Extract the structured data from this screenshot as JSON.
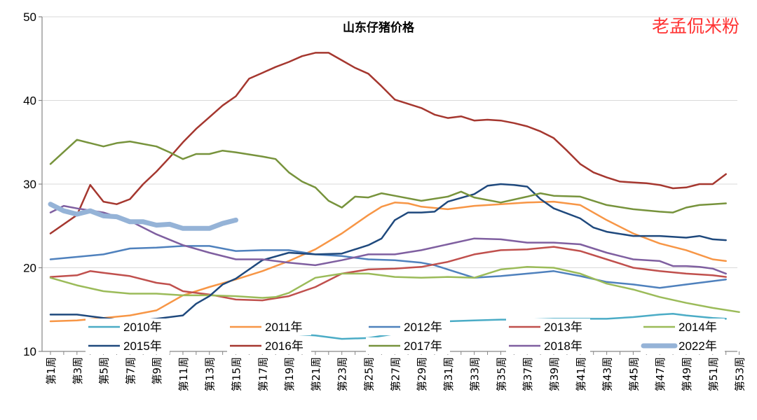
{
  "chart_data": {
    "type": "line",
    "title": "山东仔猪价格",
    "watermark": "老孟侃米粉",
    "xlabel": "",
    "ylabel": "",
    "ylim": [
      10,
      50
    ],
    "y_ticks": [
      "10",
      "20",
      "30",
      "40",
      "50"
    ],
    "x_tick_labels": [
      "第1周",
      "第3周",
      "第5周",
      "第7周",
      "第9周",
      "第11周",
      "第13周",
      "第15周",
      "第17周",
      "第19周",
      "第21周",
      "第23周",
      "第25周",
      "第27周",
      "第29周",
      "第31周",
      "第33周",
      "第35周",
      "第37周",
      "第39周",
      "第41周",
      "第43周",
      "第45周",
      "第47周",
      "第49周",
      "第51周",
      "第53周"
    ],
    "x_tick_weeks": [
      1,
      3,
      5,
      7,
      9,
      11,
      13,
      15,
      17,
      19,
      21,
      23,
      25,
      27,
      29,
      31,
      33,
      35,
      37,
      39,
      41,
      43,
      45,
      47,
      49,
      51,
      53
    ],
    "legend_position": "bottom",
    "series": [
      {
        "name": "2010年",
        "color": "#4bacc6",
        "width": 2.5,
        "x": [
          19,
          21,
          23,
          25,
          27,
          29,
          31,
          33,
          35,
          37,
          39,
          41,
          43,
          45,
          47,
          48,
          49,
          51,
          52
        ],
        "y": [
          12.1,
          11.9,
          11.5,
          11.6,
          12.1,
          13.3,
          13.6,
          13.7,
          13.8,
          13.8,
          13.9,
          13.9,
          13.9,
          14.1,
          14.4,
          14.5,
          14.3,
          14.0,
          13.9
        ]
      },
      {
        "name": "2011年",
        "color": "#f79646",
        "width": 2.5,
        "x": [
          1,
          3,
          5,
          7,
          9,
          11,
          13,
          15,
          17,
          19,
          21,
          23,
          25,
          26,
          27,
          28,
          29,
          31,
          33,
          35,
          37,
          39,
          41,
          43,
          45,
          47,
          49,
          51,
          52
        ],
        "y": [
          13.6,
          13.7,
          14.0,
          14.3,
          14.9,
          16.7,
          17.7,
          18.6,
          19.6,
          20.8,
          22.2,
          24.1,
          26.3,
          27.3,
          27.8,
          27.7,
          27.3,
          27.0,
          27.4,
          27.6,
          27.8,
          27.9,
          27.5,
          25.7,
          24.1,
          22.9,
          22.1,
          21.0,
          20.8
        ]
      },
      {
        "name": "2012年",
        "color": "#4f81bd",
        "width": 2.5,
        "x": [
          1,
          3,
          5,
          7,
          9,
          11,
          13,
          15,
          17,
          19,
          21,
          23,
          25,
          27,
          29,
          30,
          31,
          33,
          35,
          37,
          39,
          41,
          43,
          45,
          47,
          49,
          51,
          52
        ],
        "y": [
          21.0,
          21.3,
          21.6,
          22.3,
          22.4,
          22.6,
          22.6,
          22.0,
          22.1,
          22.1,
          21.6,
          21.4,
          21.0,
          20.9,
          20.6,
          20.3,
          19.8,
          18.8,
          19.0,
          19.3,
          19.6,
          19.0,
          18.3,
          18.0,
          17.6,
          18.0,
          18.4,
          18.6
        ]
      },
      {
        "name": "2013年",
        "color": "#c0504d",
        "width": 2.5,
        "x": [
          1,
          3,
          4,
          5,
          7,
          9,
          10,
          11,
          13,
          15,
          17,
          19,
          21,
          23,
          25,
          27,
          29,
          31,
          33,
          35,
          37,
          39,
          41,
          43,
          45,
          47,
          49,
          51,
          52
        ],
        "y": [
          18.9,
          19.1,
          19.6,
          19.4,
          19.0,
          18.2,
          18.0,
          17.2,
          16.8,
          16.2,
          16.1,
          16.6,
          17.7,
          19.3,
          19.8,
          19.9,
          20.1,
          20.7,
          21.6,
          22.1,
          22.2,
          22.5,
          22.0,
          21.0,
          20.0,
          19.6,
          19.3,
          19.1,
          18.9
        ]
      },
      {
        "name": "2014年",
        "color": "#9bbb59",
        "width": 2.5,
        "x": [
          1,
          3,
          5,
          7,
          9,
          11,
          13,
          15,
          17,
          18,
          19,
          21,
          23,
          25,
          27,
          29,
          31,
          33,
          35,
          37,
          39,
          41,
          43,
          45,
          47,
          49,
          51,
          53
        ],
        "y": [
          18.8,
          17.9,
          17.2,
          16.9,
          16.9,
          16.7,
          16.7,
          16.6,
          16.4,
          16.5,
          17.0,
          18.8,
          19.3,
          19.3,
          18.9,
          18.8,
          18.9,
          18.8,
          19.8,
          20.1,
          20.0,
          19.3,
          18.1,
          17.4,
          16.5,
          15.8,
          15.2,
          14.7
        ]
      },
      {
        "name": "2015年",
        "color": "#1f497d",
        "width": 2.5,
        "x": [
          1,
          3,
          5,
          7,
          9,
          11,
          12,
          13,
          14,
          15,
          17,
          19,
          21,
          23,
          25,
          26,
          27,
          28,
          29,
          30,
          31,
          33,
          34,
          35,
          36,
          37,
          38,
          39,
          41,
          42,
          43,
          45,
          47,
          49,
          50,
          51,
          52
        ],
        "y": [
          14.4,
          14.4,
          14.0,
          13.6,
          13.9,
          14.3,
          15.7,
          16.6,
          18.0,
          18.7,
          20.9,
          21.8,
          21.6,
          21.7,
          22.7,
          23.5,
          25.7,
          26.6,
          26.6,
          26.7,
          27.9,
          28.8,
          29.8,
          30.0,
          29.9,
          29.7,
          28.2,
          27.1,
          25.9,
          24.8,
          24.3,
          23.8,
          23.8,
          23.6,
          23.8,
          23.4,
          23.3
        ]
      },
      {
        "name": "2016年",
        "color": "#a5372f",
        "width": 2.5,
        "x": [
          1,
          3,
          4,
          5,
          6,
          7,
          8,
          9,
          10,
          11,
          12,
          13,
          14,
          15,
          16,
          17,
          18,
          19,
          20,
          21,
          22,
          23,
          24,
          25,
          26,
          27,
          28,
          29,
          30,
          31,
          32,
          33,
          34,
          35,
          36,
          37,
          38,
          39,
          40,
          41,
          42,
          43,
          44,
          45,
          46,
          47,
          48,
          49,
          50,
          51,
          52
        ],
        "y": [
          24.1,
          26.3,
          29.9,
          27.9,
          27.6,
          28.2,
          30.0,
          31.5,
          33.2,
          35.0,
          36.6,
          38.0,
          39.4,
          40.5,
          42.6,
          43.3,
          44.0,
          44.6,
          45.3,
          45.7,
          45.7,
          44.8,
          43.9,
          43.2,
          41.7,
          40.1,
          39.6,
          39.1,
          38.3,
          37.9,
          38.1,
          37.6,
          37.7,
          37.6,
          37.3,
          36.9,
          36.3,
          35.5,
          34.0,
          32.4,
          31.4,
          30.8,
          30.3,
          30.2,
          30.1,
          29.9,
          29.5,
          29.6,
          30.0,
          30.0,
          31.2
        ]
      },
      {
        "name": "2017年",
        "color": "#77933c",
        "width": 2.5,
        "x": [
          1,
          3,
          5,
          6,
          7,
          9,
          10,
          11,
          12,
          13,
          14,
          15,
          17,
          18,
          19,
          20,
          21,
          22,
          23,
          24,
          25,
          26,
          27,
          29,
          31,
          32,
          33,
          35,
          37,
          38,
          39,
          41,
          43,
          45,
          47,
          48,
          49,
          50,
          51,
          52
        ],
        "y": [
          32.4,
          35.3,
          34.5,
          34.9,
          35.1,
          34.5,
          33.8,
          33.0,
          33.6,
          33.6,
          34.0,
          33.8,
          33.3,
          33.0,
          31.4,
          30.3,
          29.6,
          28.0,
          27.2,
          28.5,
          28.4,
          28.9,
          28.6,
          28.0,
          28.5,
          29.1,
          28.4,
          27.8,
          28.5,
          28.9,
          28.6,
          28.5,
          27.5,
          27.0,
          26.7,
          26.6,
          27.2,
          27.5,
          27.6,
          27.7
        ]
      },
      {
        "name": "2018年",
        "color": "#7f5fa0",
        "width": 2.5,
        "x": [
          1,
          2,
          3,
          5,
          7,
          9,
          11,
          13,
          15,
          17,
          19,
          21,
          23,
          25,
          27,
          29,
          31,
          33,
          35,
          37,
          39,
          41,
          43,
          45,
          47,
          48,
          49,
          50,
          51,
          52
        ],
        "y": [
          26.6,
          27.4,
          27.1,
          26.6,
          25.6,
          24.0,
          22.7,
          21.8,
          21.0,
          21.0,
          20.6,
          20.3,
          20.9,
          21.6,
          21.6,
          22.1,
          22.8,
          23.5,
          23.4,
          23.0,
          23.0,
          22.8,
          21.8,
          21.0,
          20.8,
          20.2,
          20.2,
          20.1,
          19.9,
          19.3
        ]
      },
      {
        "name": "2022年",
        "color": "#95b3d7",
        "width": 7,
        "x": [
          1,
          2,
          3,
          4,
          5,
          6,
          7,
          8,
          9,
          10,
          11,
          12,
          13,
          14,
          15
        ],
        "y": [
          27.6,
          26.8,
          26.4,
          26.8,
          26.2,
          26.1,
          25.5,
          25.5,
          25.1,
          25.2,
          24.7,
          24.7,
          24.7,
          25.3,
          25.7
        ]
      }
    ]
  }
}
